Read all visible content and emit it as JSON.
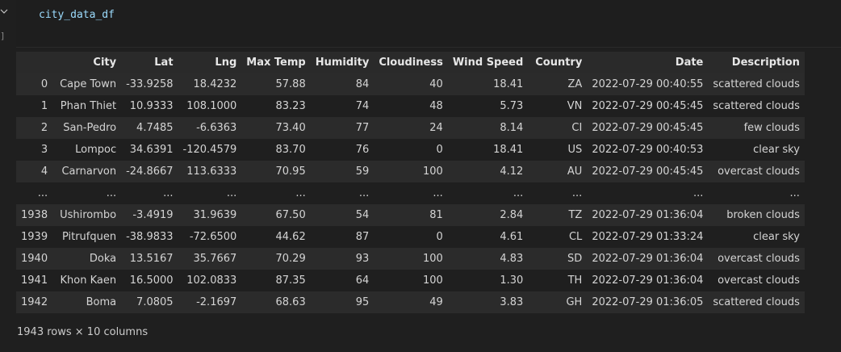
{
  "editor": {
    "code": "city_data_df",
    "exec_count": "]"
  },
  "table": {
    "columns": [
      "",
      "City",
      "Lat",
      "Lng",
      "Max Temp",
      "Humidity",
      "Cloudiness",
      "Wind Speed",
      "Country",
      "Date",
      "Description"
    ],
    "rows": [
      [
        "0",
        "Cape Town",
        "-33.9258",
        "18.4232",
        "57.88",
        "84",
        "40",
        "18.41",
        "ZA",
        "2022-07-29 00:40:55",
        "scattered clouds"
      ],
      [
        "1",
        "Phan Thiet",
        "10.9333",
        "108.1000",
        "83.23",
        "74",
        "48",
        "5.73",
        "VN",
        "2022-07-29 00:45:45",
        "scattered clouds"
      ],
      [
        "2",
        "San-Pedro",
        "4.7485",
        "-6.6363",
        "73.40",
        "77",
        "24",
        "8.14",
        "CI",
        "2022-07-29 00:45:45",
        "few clouds"
      ],
      [
        "3",
        "Lompoc",
        "34.6391",
        "-120.4579",
        "83.70",
        "76",
        "0",
        "18.41",
        "US",
        "2022-07-29 00:40:53",
        "clear sky"
      ],
      [
        "4",
        "Carnarvon",
        "-24.8667",
        "113.6333",
        "70.95",
        "59",
        "100",
        "4.12",
        "AU",
        "2022-07-29 00:45:45",
        "overcast clouds"
      ],
      [
        "...",
        "...",
        "...",
        "...",
        "...",
        "...",
        "...",
        "...",
        "...",
        "...",
        "..."
      ],
      [
        "1938",
        "Ushirombo",
        "-3.4919",
        "31.9639",
        "67.50",
        "54",
        "81",
        "2.84",
        "TZ",
        "2022-07-29 01:36:04",
        "broken clouds"
      ],
      [
        "1939",
        "Pitrufquen",
        "-38.9833",
        "-72.6500",
        "44.62",
        "87",
        "0",
        "4.61",
        "CL",
        "2022-07-29 01:33:24",
        "clear sky"
      ],
      [
        "1940",
        "Doka",
        "13.5167",
        "35.7667",
        "70.29",
        "93",
        "100",
        "4.83",
        "SD",
        "2022-07-29 01:36:04",
        "overcast clouds"
      ],
      [
        "1941",
        "Khon Kaen",
        "16.5000",
        "102.0833",
        "87.35",
        "64",
        "100",
        "1.30",
        "TH",
        "2022-07-29 01:36:04",
        "overcast clouds"
      ],
      [
        "1942",
        "Boma",
        "7.0805",
        "-2.1697",
        "68.63",
        "95",
        "49",
        "3.83",
        "GH",
        "2022-07-29 01:36:05",
        "scattered clouds"
      ]
    ]
  },
  "shape_text": "1943 rows × 10 columns"
}
